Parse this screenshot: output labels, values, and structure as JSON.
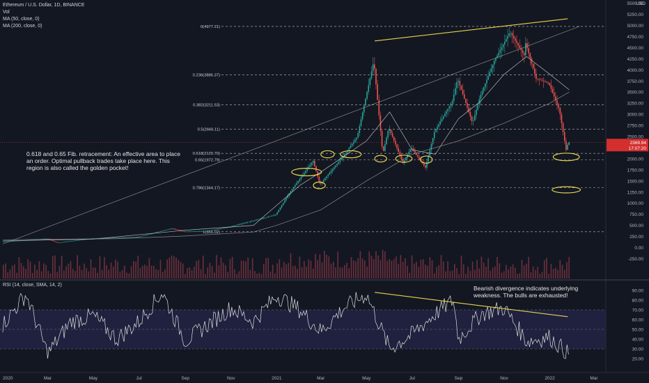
{
  "legend": {
    "symbol": "Ethereum / U.S. Dollar, 1D, BINANCE",
    "vol": "Vol",
    "ma50": "MA (50, close, 0)",
    "ma200": "MA (200, close, 0)",
    "rsi": "RSI (14, close, SMA, 14, 2)"
  },
  "annotations": {
    "fib_note": "0.618 and 0.65 Fib. retracement: An effective area to place an order. Optimal pullback trades take place here. This region is also called the golden pocket!",
    "rsi_note": "Bearish divergence indicates underlying weakness. The bulls are exhausted!"
  },
  "price_axis": {
    "currency": "USD",
    "ticks": [
      "5500.00",
      "5250.00",
      "5000.00",
      "4750.00",
      "4500.00",
      "4250.00",
      "4000.00",
      "3750.00",
      "3500.00",
      "3250.00",
      "3000.00",
      "2750.00",
      "2500.00",
      "2250.00",
      "2000.00",
      "1750.00",
      "1500.00",
      "1250.00",
      "1000.00",
      "750.00",
      "500.00",
      "250.00",
      "0.00",
      "-250.00"
    ],
    "current_price": "2369.94",
    "countdown": "17:07:20"
  },
  "rsi_axis": {
    "ticks": [
      "90.00",
      "80.00",
      "70.00",
      "60.00",
      "50.00",
      "40.00",
      "30.00",
      "20.00"
    ]
  },
  "time_axis": {
    "labels": [
      "2020",
      "Mar",
      "May",
      "Jul",
      "Sep",
      "Nov",
      "2021",
      "Mar",
      "May",
      "Jul",
      "Sep",
      "Nov",
      "2022",
      "Mar"
    ]
  },
  "fib_levels": [
    {
      "label": "0(4977.21)",
      "ratio": 0,
      "price": 4977.21
    },
    {
      "label": "0.236(3886.37)",
      "ratio": 0.236,
      "price": 3886.37
    },
    {
      "label": "0.382(3211.53)",
      "ratio": 0.382,
      "price": 3211.53
    },
    {
      "label": "0.5(2666.11)",
      "ratio": 0.5,
      "price": 2666.11
    },
    {
      "label": "0.618(2120.70)",
      "ratio": 0.618,
      "price": 2120.7
    },
    {
      "label": "0.65(1972.79)",
      "ratio": 0.65,
      "price": 1972.79
    },
    {
      "label": "0.786(1344.17)",
      "ratio": 0.786,
      "price": 1344.17
    },
    {
      "label": "1(355.02)",
      "ratio": 1,
      "price": 355.02
    }
  ],
  "chart_data": {
    "type": "line",
    "series": [
      {
        "name": "Ethereum / U.S. Dollar, 1D, BINANCE",
        "color": "#26a69a",
        "points": [
          [
            "2020-01",
            130
          ],
          [
            "2020-03",
            200
          ],
          [
            "2020-03-15",
            110
          ],
          [
            "2020-05",
            205
          ],
          [
            "2020-07",
            240
          ],
          [
            "2020-08-15",
            430
          ],
          [
            "2020-09",
            360
          ],
          [
            "2020-10",
            370
          ],
          [
            "2020-11",
            470
          ],
          [
            "2020-12",
            600
          ],
          [
            "2021-01",
            740
          ],
          [
            "2021-01-20",
            1250
          ],
          [
            "2021-02-20",
            1950
          ],
          [
            "2021-03",
            1420
          ],
          [
            "2021-04",
            2050
          ],
          [
            "2021-04-20",
            2500
          ],
          [
            "2021-05-12",
            4200
          ],
          [
            "2021-05-24",
            2100
          ],
          [
            "2021-06",
            2700
          ],
          [
            "2021-06-20",
            1900
          ],
          [
            "2021-07",
            2250
          ],
          [
            "2021-07-20",
            1800
          ],
          [
            "2021-08",
            2600
          ],
          [
            "2021-08-25",
            3300
          ],
          [
            "2021-09",
            3800
          ],
          [
            "2021-09-21",
            2800
          ],
          [
            "2021-10",
            3400
          ],
          [
            "2021-10-20",
            4200
          ],
          [
            "2021-11-10",
            4850
          ],
          [
            "2021-11-30",
            4300
          ],
          [
            "2021-12",
            4600
          ],
          [
            "2021-12-15",
            3800
          ],
          [
            "2022-01",
            3700
          ],
          [
            "2022-01-15",
            3100
          ],
          [
            "2022-01-24",
            2200
          ],
          [
            "2022-01-27",
            2369.94
          ]
        ]
      },
      {
        "name": "MA (50, close, 0)",
        "color": "#cfcfcf",
        "points": [
          [
            "2020-01",
            150
          ],
          [
            "2020-05",
            190
          ],
          [
            "2020-09",
            390
          ],
          [
            "2020-12",
            500
          ],
          [
            "2021-02",
            1400
          ],
          [
            "2021-03",
            1700
          ],
          [
            "2021-05",
            2400
          ],
          [
            "2021-06",
            3050
          ],
          [
            "2021-07",
            2200
          ],
          [
            "2021-08",
            2100
          ],
          [
            "2021-09",
            2900
          ],
          [
            "2021-10",
            3300
          ],
          [
            "2021-11",
            3900
          ],
          [
            "2021-12",
            4300
          ],
          [
            "2022-01",
            3900
          ],
          [
            "2022-01-27",
            3550
          ]
        ]
      },
      {
        "name": "MA (200, close, 0)",
        "color": "#9e9e9e",
        "points": [
          [
            "2020-01",
            175
          ],
          [
            "2020-06",
            200
          ],
          [
            "2020-09",
            260
          ],
          [
            "2020-12",
            350
          ],
          [
            "2021-01",
            500
          ],
          [
            "2021-03",
            850
          ],
          [
            "2021-05",
            1500
          ],
          [
            "2021-07",
            2100
          ],
          [
            "2021-09",
            2400
          ],
          [
            "2021-11",
            2800
          ],
          [
            "2022-01",
            3250
          ],
          [
            "2022-01-27",
            3500
          ]
        ]
      }
    ],
    "rsi": {
      "name": "RSI (14, close, SMA, 14, 2)",
      "bands": [
        70,
        50,
        30
      ],
      "points": [
        [
          "2020-01",
          55
        ],
        [
          "2020-02",
          86
        ],
        [
          "2020-03",
          25
        ],
        [
          "2020-04",
          58
        ],
        [
          "2020-05",
          64
        ],
        [
          "2020-06",
          40
        ],
        [
          "2020-07",
          58
        ],
        [
          "2020-08",
          88
        ],
        [
          "2020-09",
          38
        ],
        [
          "2020-10",
          55
        ],
        [
          "2020-11",
          72
        ],
        [
          "2020-12",
          58
        ],
        [
          "2021-01",
          85
        ],
        [
          "2021-02",
          70
        ],
        [
          "2021-03",
          48
        ],
        [
          "2021-04",
          72
        ],
        [
          "2021-05",
          86
        ],
        [
          "2021-06",
          30
        ],
        [
          "2021-07",
          45
        ],
        [
          "2021-08",
          66
        ],
        [
          "2021-08-25",
          80
        ],
        [
          "2021-09",
          40
        ],
        [
          "2021-10",
          66
        ],
        [
          "2021-11",
          72
        ],
        [
          "2021-12",
          38
        ],
        [
          "2022-01",
          42
        ],
        [
          "2022-01-27",
          24
        ]
      ]
    },
    "volume_color": "#8b3a45",
    "xlim": [
      "2020-01-01",
      "2022-03-15"
    ],
    "ylim": [
      -250,
      5500
    ],
    "rsi_ylim": [
      20,
      90
    ],
    "drawings": {
      "resistance_trendline": {
        "color": "#e8d44d",
        "points": [
          [
            "2021-05-12",
            4650
          ],
          [
            "2022-01-25",
            5150
          ]
        ]
      },
      "rsi_trendline": {
        "color": "#e8d44d",
        "points": [
          [
            "2021-05-12",
            88
          ],
          [
            "2022-01-25",
            63
          ]
        ]
      },
      "support_trendline": {
        "color": "#9e9e9e",
        "points": [
          [
            "2020-01-01",
            80
          ],
          [
            "2022-02-10",
            4980
          ]
        ]
      },
      "ellipses": [
        {
          "center": [
            "2021-02-10",
            1700
          ],
          "width_days": 40,
          "height_price": 170
        },
        {
          "center": [
            "2021-02-27",
            1400
          ],
          "width_days": 16,
          "height_price": 150
        },
        {
          "center": [
            "2021-03-10",
            2100
          ],
          "width_days": 18,
          "height_price": 160
        },
        {
          "center": [
            "2021-04-10",
            2100
          ],
          "width_days": 28,
          "height_price": 160
        },
        {
          "center": [
            "2021-05-20",
            2000
          ],
          "width_days": 16,
          "height_price": 150
        },
        {
          "center": [
            "2021-06-20",
            2000
          ],
          "width_days": 22,
          "height_price": 160
        },
        {
          "center": [
            "2021-07-20",
            1980
          ],
          "width_days": 16,
          "height_price": 160
        },
        {
          "center": [
            "2022-01-23",
            2040
          ],
          "width_days": 35,
          "height_price": 170
        },
        {
          "center": [
            "2022-01-23",
            1300
          ],
          "width_days": 38,
          "height_price": 140
        }
      ]
    },
    "colors": {
      "background": "#131722",
      "up": "#26a69a",
      "down": "#ef5350",
      "fib": "#bfbfbf",
      "rsi": "#e0e0e0",
      "rsi_band": "#2a2a55",
      "annotation": "#e8d44d",
      "price_tag": "#d32f2f"
    }
  }
}
